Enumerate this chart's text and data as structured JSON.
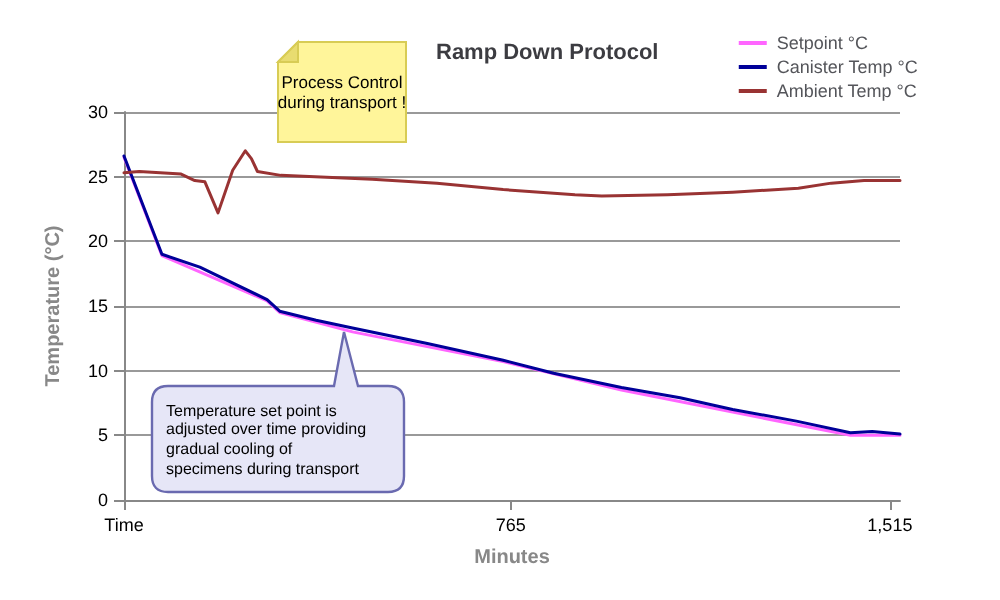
{
  "chart_data": {
    "type": "line",
    "title": "Ramp Down Protocol",
    "xlabel": "Minutes",
    "ylabel": "Temperature (°C)",
    "xlim": [
      0,
      1535
    ],
    "xticks": [
      {
        "value": 0,
        "label": "Time"
      },
      765,
      {
        "value": 1515,
        "label": "1,515"
      }
    ],
    "ylim": [
      0,
      30
    ],
    "yticks": [
      0,
      5,
      10,
      15,
      20,
      25,
      30
    ],
    "grid": "y",
    "legend": "top right",
    "marker": "none",
    "line_style": "solid",
    "series": [
      {
        "name": "Setpoint °C",
        "color": "#ff66ff",
        "x": [
          0,
          75,
          283,
          308,
          452,
          750,
          984,
          1204,
          1437,
          1535
        ],
        "values": [
          26.5,
          18.9,
          15.4,
          14.5,
          13.0,
          10.7,
          8.5,
          6.8,
          5.0,
          5.0
        ]
      },
      {
        "name": "Canister Temp °C",
        "color": "#000099",
        "x": [
          0,
          75,
          150,
          283,
          308,
          380,
          452,
          600,
          750,
          850,
          984,
          1100,
          1204,
          1330,
          1437,
          1480,
          1535
        ],
        "values": [
          26.6,
          19.0,
          18.0,
          15.5,
          14.6,
          13.9,
          13.3,
          12.1,
          10.8,
          9.8,
          8.7,
          7.9,
          7.0,
          6.1,
          5.2,
          5.3,
          5.1
        ]
      },
      {
        "name": "Ambient Temp °C",
        "color": "#993333",
        "x": [
          0,
          30,
          113,
          140,
          160,
          186,
          215,
          240,
          252,
          264,
          310,
          491,
          619,
          750,
          892,
          945,
          1075,
          1204,
          1334,
          1399,
          1464,
          1535
        ],
        "values": [
          25.3,
          25.4,
          25.2,
          24.7,
          24.6,
          22.2,
          25.5,
          27.0,
          26.4,
          25.4,
          25.1,
          24.8,
          24.5,
          24.0,
          23.6,
          23.5,
          23.6,
          23.8,
          24.1,
          24.5,
          24.7,
          24.7
        ]
      }
    ],
    "annotations": [
      "Process Control\nduring transport !",
      "Temperature set point is\nadjusted over time providing\ngradual cooling of\nspecimens during transport"
    ]
  }
}
